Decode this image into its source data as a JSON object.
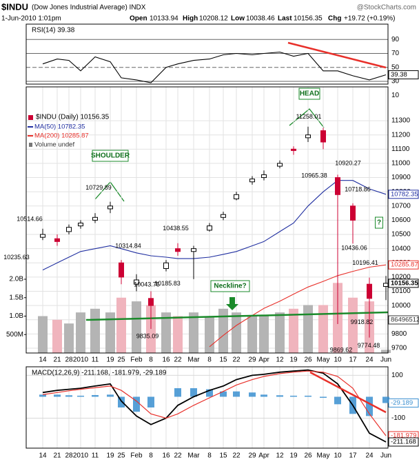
{
  "header": {
    "symbol": "$INDU",
    "name": "(Dow Jones Industrial Average) INDX",
    "source": "@StockCharts.com",
    "timestamp": "1-Jun-2010 1:01pm",
    "quote": [
      {
        "label": "Open",
        "value": "10133.94"
      },
      {
        "label": "High",
        "value": "10208.12"
      },
      {
        "label": "Low",
        "value": "10038.46"
      },
      {
        "label": "Last",
        "value": "10156.35"
      },
      {
        "label": "Chg",
        "value": "+19.72 (+0.19%)"
      }
    ]
  },
  "chart_data": [
    {
      "type": "line",
      "title": "RSI(14) 39.38",
      "color": "#000000",
      "values": [
        55,
        62,
        60,
        45,
        65,
        58,
        35,
        32,
        28,
        50,
        55,
        60,
        62,
        68,
        70,
        68,
        70,
        72,
        66,
        70,
        45,
        45,
        38,
        32,
        39.38
      ],
      "ylim": [
        26,
        112
      ],
      "yticks": [
        10,
        30,
        50,
        70,
        90
      ],
      "grid": true
    },
    {
      "type": "candlestick",
      "title": "$INDU (Daily) 10156.35",
      "categories": [
        "14",
        "21",
        "28",
        "2010",
        "11",
        "19",
        "25",
        "Feb",
        "8",
        "16",
        "22",
        "Mar",
        "8",
        "15",
        "22",
        "29",
        "Apr",
        "12",
        "19",
        "26",
        "May",
        "10",
        "17",
        "24",
        "Jun"
      ],
      "open": [
        10480,
        10470,
        10520,
        10560,
        10600,
        10680,
        10300,
        10150,
        10050,
        10260,
        10400,
        10380,
        10530,
        10620,
        10750,
        10870,
        10900,
        10980,
        11100,
        11180,
        11230,
        10900,
        10700,
        10150,
        10133.94
      ],
      "high": [
        10540,
        10500,
        10570,
        10600,
        10650,
        10729.89,
        10320,
        10220,
        10100,
        10320,
        10438.55,
        10420,
        10580,
        10660,
        10800,
        10910,
        10950,
        11020,
        11120,
        11258.01,
        11250,
        10920.27,
        10718.86,
        10196.41,
        10208.12
      ],
      "low": [
        10460,
        10420,
        10500,
        10540,
        10580,
        10650,
        10150,
        10100,
        9835.09,
        10240,
        10350,
        10185.83,
        10520,
        10600,
        10740,
        10850,
        10880,
        10965.38,
        11060,
        11150,
        11100,
        9869.62,
        10436.06,
        9774.48,
        10038.46
      ],
      "close": [
        10500,
        10450,
        10550,
        10580,
        10620,
        10700,
        10200,
        10180,
        10000,
        10300,
        10380,
        10400,
        10560,
        10640,
        10780,
        10890,
        10920,
        11000,
        11090,
        11200,
        11150,
        10780,
        10600,
        10050,
        10156.35
      ],
      "up_color": "#000000",
      "down_color": "#cc0033",
      "series": [
        {
          "name": "MA(50) 10782.35",
          "color": "#1f2ea0",
          "values": [
            10250,
            10300,
            10340,
            10380,
            10400,
            10420,
            10400,
            10370,
            10350,
            10340,
            10330,
            10330,
            10340,
            10360,
            10380,
            10420,
            10450,
            10520,
            10580,
            10700,
            10800,
            10880,
            10880,
            10820,
            10782.35
          ]
        },
        {
          "name": "MA(200) 10285.87",
          "color": "#e8302a",
          "values": [
            null,
            null,
            null,
            null,
            null,
            null,
            null,
            null,
            null,
            null,
            null,
            null,
            9710,
            9790,
            9860,
            9930,
            9980,
            10030,
            10080,
            10130,
            10170,
            10210,
            10240,
            10270,
            10285.87
          ]
        },
        {
          "name": "Volume undef",
          "color": "#b4b4b4",
          "axis": "y2",
          "values": [
            1000000000,
            900000000,
            800000000,
            1100000000,
            1200000000,
            1100000000,
            1500000000,
            1400000000,
            1300000000,
            1100000000,
            1000000000,
            1100000000,
            1000000000,
            1200000000,
            1100000000,
            1000000000,
            1000000000,
            1100000000,
            1200000000,
            1300000000,
            1300000000,
            1900000000,
            1500000000,
            1400000000,
            86496512
          ]
        }
      ],
      "ylim": [
        9666,
        11538
      ],
      "yticks": [
        9700,
        9800,
        9900,
        10000,
        10100,
        10200,
        10300,
        10400,
        10500,
        10600,
        10700,
        10800,
        10900,
        11000,
        11100,
        11200,
        11300
      ],
      "y2lim": [
        0,
        2000000000
      ],
      "y2ticks": [
        {
          "value": 500000000,
          "label": "500M"
        },
        {
          "value": 1000000000,
          "label": "1.0B"
        },
        {
          "value": 1500000000,
          "label": "1.5B"
        },
        {
          "value": 2000000000,
          "label": "2.0B"
        }
      ],
      "annotations": [
        "SHOULDER",
        "HEAD",
        "Neckline?",
        "?"
      ],
      "price_labels": [
        10235.63,
        10514.66,
        10729.89,
        10314.84,
        10043.75,
        9835.09,
        10438.55,
        10185.83,
        11258.01,
        10965.38,
        10920.27,
        10718.86,
        10436.06,
        10196.41,
        9869.62,
        9918.82,
        9774.48
      ],
      "grid": true
    },
    {
      "type": "line",
      "title": "MACD(12,26,9) -211.168, -181.979, -29.189",
      "categories": [
        "14",
        "21",
        "28",
        "2010",
        "11",
        "19",
        "25",
        "Feb",
        "8",
        "16",
        "22",
        "Mar",
        "8",
        "15",
        "22",
        "29",
        "Apr",
        "12",
        "19",
        "26",
        "May",
        "10",
        "17",
        "24",
        "Jun"
      ],
      "series": [
        {
          "color": "#000000",
          "values": [
            20,
            30,
            35,
            40,
            50,
            60,
            -20,
            -90,
            -130,
            -100,
            -40,
            0,
            30,
            50,
            80,
            100,
            105,
            115,
            120,
            125,
            110,
            60,
            -40,
            -170,
            -211.168
          ]
        },
        {
          "color": "#e8302a",
          "values": [
            10,
            20,
            28,
            35,
            42,
            50,
            30,
            -20,
            -80,
            -100,
            -80,
            -40,
            -5,
            25,
            55,
            80,
            95,
            108,
            115,
            120,
            115,
            95,
            40,
            -80,
            -181.979
          ]
        },
        {
          "color": "#3a8fd0",
          "style": "bar",
          "values": [
            10,
            10,
            7,
            5,
            8,
            10,
            -50,
            -70,
            -50,
            0,
            40,
            40,
            35,
            25,
            25,
            20,
            10,
            7,
            5,
            5,
            -5,
            -35,
            -80,
            -90,
            -29.189
          ]
        }
      ],
      "ylim": [
        -240,
        140
      ],
      "yticks": [
        -100,
        100
      ],
      "grid": true
    }
  ]
}
